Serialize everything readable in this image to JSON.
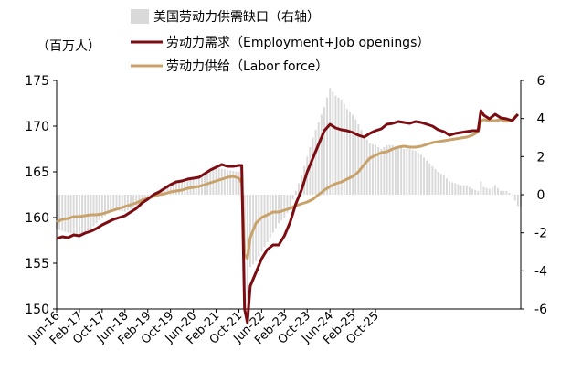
{
  "chart_data": {
    "type": "line",
    "unit_label": "（百万人）",
    "legend": [
      {
        "key": "gap",
        "label": "美国劳动力供需缺口（右轴）",
        "color": "#d9d9d9",
        "kind": "bar"
      },
      {
        "key": "demand",
        "label": "劳动力需求（Employment+Job openings）",
        "color": "#7b0c12",
        "kind": "line"
      },
      {
        "key": "supply",
        "label": "劳动力供给（Labor force）",
        "color": "#c9a26b",
        "kind": "line"
      }
    ],
    "y_left": {
      "min": 150,
      "max": 175,
      "ticks": [
        "150",
        "155",
        "160",
        "165",
        "170",
        "175"
      ]
    },
    "y_right": {
      "min": -6,
      "max": 6,
      "ticks": [
        "-6",
        "-4",
        "-2",
        "0",
        "2",
        "4",
        "6"
      ]
    },
    "x_ticks": [
      "Jun-16",
      "Feb-17",
      "Oct-17",
      "Jun-18",
      "Feb-19",
      "Oct-19",
      "Jun-20",
      "Feb-21",
      "Oct-21",
      "Jun-22",
      "Feb-23",
      "Oct-23",
      "Jun-24",
      "Feb-25",
      "Oct-25"
    ],
    "x_start": "Jun-16",
    "x_end": "Oct-25",
    "series": [
      {
        "name": "劳动力需求（Employment+Job openings）",
        "key": "demand",
        "values": [
          [
            0,
            157.7
          ],
          [
            2,
            157.9
          ],
          [
            4,
            157.8
          ],
          [
            6,
            158.1
          ],
          [
            8,
            158.0
          ],
          [
            10,
            158.3
          ],
          [
            12,
            158.5
          ],
          [
            14,
            158.8
          ],
          [
            16,
            159.2
          ],
          [
            18,
            159.5
          ],
          [
            20,
            159.8
          ],
          [
            22,
            160.0
          ],
          [
            24,
            160.2
          ],
          [
            26,
            160.6
          ],
          [
            28,
            161.0
          ],
          [
            30,
            161.6
          ],
          [
            32,
            162.0
          ],
          [
            34,
            162.5
          ],
          [
            36,
            162.8
          ],
          [
            38,
            163.2
          ],
          [
            40,
            163.6
          ],
          [
            42,
            163.9
          ],
          [
            44,
            164.0
          ],
          [
            46,
            164.2
          ],
          [
            48,
            164.3
          ],
          [
            50,
            164.4
          ],
          [
            52,
            164.8
          ],
          [
            54,
            165.2
          ],
          [
            56,
            165.5
          ],
          [
            58,
            165.8
          ],
          [
            60,
            165.6
          ],
          [
            62,
            165.6
          ],
          [
            64,
            165.7
          ],
          [
            65,
            165.7
          ],
          [
            66,
            150.0
          ],
          [
            67,
            148.5
          ],
          [
            68,
            152.5
          ],
          [
            70,
            154.0
          ],
          [
            72,
            155.5
          ],
          [
            74,
            156.5
          ],
          [
            76,
            157.0
          ],
          [
            78,
            157.0
          ],
          [
            80,
            158.0
          ],
          [
            82,
            159.5
          ],
          [
            84,
            161.5
          ],
          [
            86,
            163.0
          ],
          [
            88,
            165.0
          ],
          [
            90,
            166.5
          ],
          [
            92,
            168.0
          ],
          [
            94,
            169.5
          ],
          [
            96,
            170.2
          ],
          [
            98,
            169.8
          ],
          [
            100,
            169.6
          ],
          [
            102,
            169.5
          ],
          [
            104,
            169.3
          ],
          [
            106,
            169.0
          ],
          [
            108,
            168.8
          ],
          [
            110,
            169.2
          ],
          [
            112,
            169.5
          ],
          [
            114,
            169.7
          ],
          [
            116,
            170.2
          ],
          [
            118,
            170.3
          ],
          [
            120,
            170.5
          ],
          [
            122,
            170.4
          ],
          [
            124,
            170.3
          ],
          [
            126,
            170.5
          ],
          [
            128,
            170.4
          ],
          [
            130,
            170.2
          ],
          [
            132,
            170.0
          ],
          [
            134,
            169.6
          ],
          [
            136,
            169.4
          ],
          [
            138,
            169.0
          ],
          [
            140,
            169.2
          ],
          [
            142,
            169.3
          ],
          [
            144,
            169.4
          ],
          [
            146,
            169.5
          ],
          [
            148,
            169.5
          ],
          [
            149,
            171.7
          ],
          [
            150,
            171.2
          ],
          [
            152,
            170.8
          ],
          [
            154,
            171.3
          ],
          [
            156,
            170.9
          ],
          [
            158,
            170.8
          ],
          [
            160,
            170.6
          ],
          [
            162,
            171.3
          ]
        ]
      },
      {
        "name": "劳动力供给（Labor force）",
        "key": "supply",
        "values": [
          [
            0,
            159.5
          ],
          [
            2,
            159.8
          ],
          [
            4,
            159.9
          ],
          [
            6,
            160.1
          ],
          [
            8,
            160.1
          ],
          [
            10,
            160.2
          ],
          [
            12,
            160.3
          ],
          [
            14,
            160.3
          ],
          [
            16,
            160.4
          ],
          [
            18,
            160.6
          ],
          [
            20,
            160.8
          ],
          [
            22,
            161.0
          ],
          [
            24,
            161.2
          ],
          [
            26,
            161.4
          ],
          [
            28,
            161.6
          ],
          [
            30,
            161.9
          ],
          [
            32,
            162.1
          ],
          [
            34,
            162.3
          ],
          [
            36,
            162.5
          ],
          [
            38,
            162.6
          ],
          [
            40,
            162.8
          ],
          [
            42,
            162.9
          ],
          [
            44,
            163.0
          ],
          [
            46,
            163.2
          ],
          [
            48,
            163.3
          ],
          [
            50,
            163.4
          ],
          [
            52,
            163.6
          ],
          [
            54,
            163.8
          ],
          [
            56,
            164.0
          ],
          [
            58,
            164.2
          ],
          [
            60,
            164.4
          ],
          [
            62,
            164.5
          ],
          [
            64,
            164.3
          ],
          [
            65,
            163.8
          ],
          [
            66,
            156.0
          ],
          [
            67,
            155.5
          ],
          [
            68,
            157.8
          ],
          [
            70,
            159.4
          ],
          [
            72,
            160.0
          ],
          [
            74,
            160.3
          ],
          [
            76,
            160.6
          ],
          [
            78,
            160.6
          ],
          [
            80,
            160.8
          ],
          [
            82,
            161.0
          ],
          [
            84,
            161.3
          ],
          [
            86,
            161.5
          ],
          [
            88,
            161.7
          ],
          [
            90,
            162.0
          ],
          [
            92,
            162.5
          ],
          [
            94,
            163.0
          ],
          [
            96,
            163.4
          ],
          [
            98,
            163.7
          ],
          [
            100,
            163.9
          ],
          [
            102,
            164.2
          ],
          [
            104,
            164.5
          ],
          [
            106,
            165.0
          ],
          [
            108,
            165.8
          ],
          [
            110,
            166.5
          ],
          [
            112,
            166.8
          ],
          [
            114,
            167.1
          ],
          [
            116,
            167.2
          ],
          [
            118,
            167.5
          ],
          [
            120,
            167.7
          ],
          [
            122,
            167.8
          ],
          [
            124,
            167.7
          ],
          [
            126,
            167.7
          ],
          [
            128,
            167.8
          ],
          [
            130,
            168.0
          ],
          [
            132,
            168.2
          ],
          [
            134,
            168.3
          ],
          [
            136,
            168.4
          ],
          [
            138,
            168.5
          ],
          [
            140,
            168.6
          ],
          [
            142,
            168.7
          ],
          [
            144,
            168.8
          ],
          [
            146,
            169.0
          ],
          [
            148,
            169.4
          ],
          [
            149,
            170.6
          ],
          [
            150,
            170.7
          ],
          [
            152,
            170.6
          ],
          [
            154,
            170.6
          ],
          [
            156,
            170.7
          ],
          [
            158,
            170.5
          ],
          [
            160,
            170.7
          ],
          [
            162,
            171.3
          ]
        ]
      },
      {
        "name": "美国劳动力供需缺口（右轴）",
        "key": "gap",
        "values": [
          [
            0,
            -1.8
          ],
          [
            4,
            -2.0
          ],
          [
            8,
            -2.1
          ],
          [
            12,
            -1.8
          ],
          [
            16,
            -1.2
          ],
          [
            20,
            -0.8
          ],
          [
            24,
            -0.9
          ],
          [
            28,
            -0.6
          ],
          [
            32,
            -0.2
          ],
          [
            36,
            0.2
          ],
          [
            40,
            0.5
          ],
          [
            44,
            0.8
          ],
          [
            48,
            0.8
          ],
          [
            52,
            1.0
          ],
          [
            56,
            1.4
          ],
          [
            60,
            1.3
          ],
          [
            64,
            1.2
          ],
          [
            65,
            1.6
          ],
          [
            66,
            -5.5
          ],
          [
            67,
            -6.0
          ],
          [
            68,
            -3.8
          ],
          [
            70,
            -3.5
          ],
          [
            72,
            -3.0
          ],
          [
            74,
            -2.5
          ],
          [
            76,
            -2.0
          ],
          [
            78,
            -1.5
          ],
          [
            80,
            -1.2
          ],
          [
            82,
            -0.7
          ],
          [
            84,
            0.2
          ],
          [
            86,
            1.0
          ],
          [
            88,
            2.0
          ],
          [
            90,
            3.0
          ],
          [
            92,
            3.8
          ],
          [
            94,
            4.6
          ],
          [
            96,
            5.6
          ],
          [
            98,
            5.2
          ],
          [
            100,
            5.0
          ],
          [
            102,
            4.5
          ],
          [
            104,
            4.2
          ],
          [
            106,
            3.7
          ],
          [
            108,
            3.1
          ],
          [
            110,
            2.7
          ],
          [
            112,
            2.6
          ],
          [
            114,
            2.4
          ],
          [
            116,
            2.6
          ],
          [
            118,
            2.6
          ],
          [
            120,
            2.5
          ],
          [
            122,
            2.4
          ],
          [
            124,
            2.4
          ],
          [
            126,
            2.3
          ],
          [
            128,
            2.1
          ],
          [
            130,
            1.8
          ],
          [
            132,
            1.5
          ],
          [
            134,
            1.2
          ],
          [
            136,
            1.0
          ],
          [
            138,
            0.7
          ],
          [
            140,
            0.6
          ],
          [
            142,
            0.5
          ],
          [
            144,
            0.5
          ],
          [
            146,
            0.3
          ],
          [
            148,
            0.2
          ],
          [
            149,
            0.7
          ],
          [
            150,
            0.4
          ],
          [
            152,
            0.3
          ],
          [
            154,
            0.5
          ],
          [
            156,
            0.2
          ],
          [
            158,
            0.2
          ],
          [
            160,
            0.0
          ],
          [
            162,
            -0.6
          ]
        ]
      }
    ]
  }
}
